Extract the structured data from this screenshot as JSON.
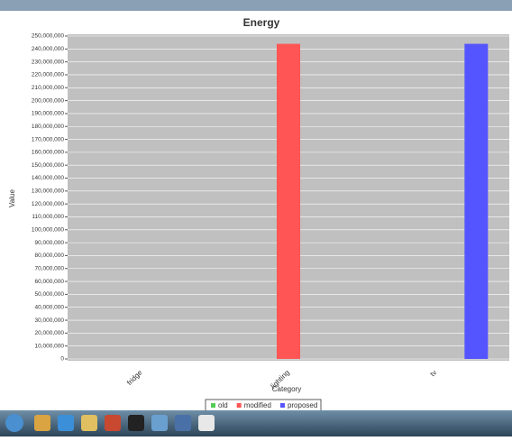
{
  "chart_data": {
    "type": "bar",
    "title": "Energy",
    "x_label": "Category",
    "y_label": "Value",
    "categories": [
      "fridge",
      "lighting",
      "tv"
    ],
    "series": [
      {
        "name": "old",
        "color": "#55cc55",
        "values": [
          null,
          null,
          null
        ]
      },
      {
        "name": "modified",
        "color": "#ff5555",
        "values": [
          null,
          244000000,
          null
        ]
      },
      {
        "name": "proposed",
        "color": "#5555ff",
        "values": [
          null,
          null,
          244000000
        ]
      }
    ],
    "ylim": [
      0,
      250000000
    ],
    "yticks": [
      0,
      {
        "value": 10000000,
        "label": "10,000,000"
      },
      {
        "value": 20000000,
        "label": "20,000,000"
      },
      {
        "value": 30000000,
        "label": "30,000,000"
      },
      {
        "value": 40000000,
        "label": "40,000,000"
      },
      {
        "value": 50000000,
        "label": "50,000,000"
      },
      {
        "value": 60000000,
        "label": "60,000,000"
      },
      {
        "value": 70000000,
        "label": "70,000,000"
      },
      {
        "value": 80000000,
        "label": "80,000,000"
      },
      {
        "value": 90000000,
        "label": "90,000,000"
      },
      {
        "value": 100000000,
        "label": "100,000,000"
      },
      {
        "value": 110000000,
        "label": "110,000,000"
      },
      {
        "value": 120000000,
        "label": "120,000,000"
      },
      {
        "value": 130000000,
        "label": "130,000,000"
      },
      {
        "value": 140000000,
        "label": "140,000,000"
      },
      {
        "value": 150000000,
        "label": "150,000,000"
      },
      {
        "value": 160000000,
        "label": "160,000,000"
      },
      {
        "value": 170000000,
        "label": "170,000,000"
      },
      {
        "value": 180000000,
        "label": "180,000,000"
      },
      {
        "value": 190000000,
        "label": "190,000,000"
      },
      {
        "value": 200000000,
        "label": "200,000,000"
      },
      {
        "value": 210000000,
        "label": "210,000,000"
      },
      {
        "value": 220000000,
        "label": "220,000,000"
      },
      {
        "value": 230000000,
        "label": "230,000,000"
      },
      {
        "value": 240000000,
        "label": "240,000,000"
      },
      {
        "value": 250000000,
        "label": "250,000,000"
      }
    ],
    "grid": true
  }
}
